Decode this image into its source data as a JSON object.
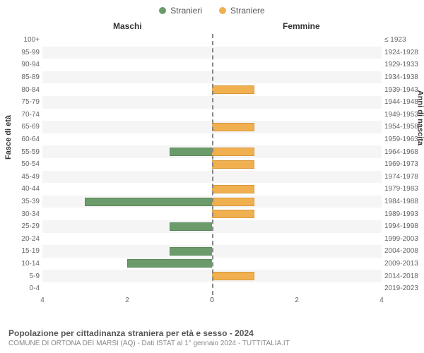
{
  "legend": {
    "male_label": "Stranieri",
    "female_label": "Straniere"
  },
  "headers": {
    "male": "Maschi",
    "female": "Femmine"
  },
  "axis_labels": {
    "left": "Fasce di età",
    "right": "Anni di nascita"
  },
  "chart": {
    "type": "population-pyramid",
    "male_color": "#6b9b6b",
    "female_color": "#f0b050",
    "grid_bg_odd": "#f5f5f5",
    "grid_bg_even": "#ffffff",
    "xlim": 4,
    "xticks": [
      4,
      2,
      0,
      0,
      2,
      4
    ],
    "xtick_positions": [
      0,
      25,
      50,
      50,
      75,
      100
    ],
    "rows": [
      {
        "age": "100+",
        "birth": "≤ 1923",
        "m": 0,
        "f": 0
      },
      {
        "age": "95-99",
        "birth": "1924-1928",
        "m": 0,
        "f": 0
      },
      {
        "age": "90-94",
        "birth": "1929-1933",
        "m": 0,
        "f": 0
      },
      {
        "age": "85-89",
        "birth": "1934-1938",
        "m": 0,
        "f": 0
      },
      {
        "age": "80-84",
        "birth": "1939-1943",
        "m": 0,
        "f": 1
      },
      {
        "age": "75-79",
        "birth": "1944-1948",
        "m": 0,
        "f": 0
      },
      {
        "age": "70-74",
        "birth": "1949-1953",
        "m": 0,
        "f": 0
      },
      {
        "age": "65-69",
        "birth": "1954-1958",
        "m": 0,
        "f": 1
      },
      {
        "age": "60-64",
        "birth": "1959-1963",
        "m": 0,
        "f": 0
      },
      {
        "age": "55-59",
        "birth": "1964-1968",
        "m": 1,
        "f": 1
      },
      {
        "age": "50-54",
        "birth": "1969-1973",
        "m": 0,
        "f": 1
      },
      {
        "age": "45-49",
        "birth": "1974-1978",
        "m": 0,
        "f": 0
      },
      {
        "age": "40-44",
        "birth": "1979-1983",
        "m": 0,
        "f": 1
      },
      {
        "age": "35-39",
        "birth": "1984-1988",
        "m": 3,
        "f": 1
      },
      {
        "age": "30-34",
        "birth": "1989-1993",
        "m": 0,
        "f": 1
      },
      {
        "age": "25-29",
        "birth": "1994-1998",
        "m": 1,
        "f": 0
      },
      {
        "age": "20-24",
        "birth": "1999-2003",
        "m": 0,
        "f": 0
      },
      {
        "age": "15-19",
        "birth": "2004-2008",
        "m": 1,
        "f": 0
      },
      {
        "age": "10-14",
        "birth": "2009-2013",
        "m": 2,
        "f": 0
      },
      {
        "age": "5-9",
        "birth": "2014-2018",
        "m": 0,
        "f": 1
      },
      {
        "age": "0-4",
        "birth": "2019-2023",
        "m": 0,
        "f": 0
      }
    ]
  },
  "footer": {
    "title": "Popolazione per cittadinanza straniera per età e sesso - 2024",
    "sub": "COMUNE DI ORTONA DEI MARSI (AQ) - Dati ISTAT al 1° gennaio 2024 - TUTTITALIA.IT"
  }
}
